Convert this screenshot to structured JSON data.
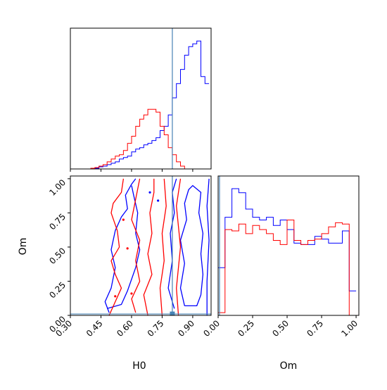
{
  "chart_data": {
    "type": "corner",
    "parameters": [
      "H0",
      "Om"
    ],
    "truth": {
      "H0": 0.8,
      "Om": 0.01
    },
    "truth_color": "#4682b4",
    "colors": {
      "series_a": "#0000ff",
      "series_b": "#ff0000"
    },
    "axes": {
      "H0": {
        "label": "H0",
        "range": [
          0.3,
          0.99
        ],
        "ticks": [
          "0.30",
          "0.45",
          "0.60",
          "0.75",
          "0.90"
        ]
      },
      "Om": {
        "label": "Om",
        "range": [
          0.0,
          1.02
        ],
        "ticks": [
          "0.00",
          "0.25",
          "0.50",
          "0.75",
          "1.00"
        ]
      }
    },
    "hist_H0": {
      "bins": [
        0.3,
        0.32,
        0.34,
        0.36,
        0.38,
        0.4,
        0.42,
        0.44,
        0.46,
        0.48,
        0.5,
        0.52,
        0.54,
        0.56,
        0.58,
        0.6,
        0.62,
        0.64,
        0.66,
        0.68,
        0.7,
        0.72,
        0.74,
        0.76,
        0.78,
        0.8,
        0.82,
        0.84,
        0.86,
        0.88,
        0.9,
        0.92,
        0.94,
        0.96,
        0.98
      ],
      "series_a": [
        0,
        0,
        0,
        0,
        0,
        0,
        0.5,
        1.5,
        2,
        3,
        4,
        5,
        7,
        8,
        9,
        12,
        14,
        15,
        17,
        18,
        20,
        22,
        27,
        30,
        38,
        50,
        60,
        70,
        80,
        86,
        88,
        90,
        65,
        60
      ],
      "series_b": [
        0,
        0,
        0,
        0,
        0,
        0.5,
        1,
        2,
        3,
        5,
        7,
        9,
        10,
        13,
        18,
        23,
        30,
        35,
        38,
        42,
        42,
        40,
        30,
        24,
        15,
        10,
        5,
        2,
        0,
        0,
        0,
        0,
        0,
        0
      ]
    },
    "hist_Om": {
      "bins": [
        0.0,
        0.05,
        0.1,
        0.15,
        0.2,
        0.25,
        0.3,
        0.35,
        0.4,
        0.45,
        0.5,
        0.55,
        0.6,
        0.65,
        0.7,
        0.75,
        0.8,
        0.85,
        0.9,
        0.95,
        1.0
      ],
      "series_a": [
        0.35,
        0.72,
        0.93,
        0.9,
        0.78,
        0.72,
        0.7,
        0.72,
        0.66,
        0.7,
        0.63,
        0.53,
        0.52,
        0.52,
        0.58,
        0.56,
        0.53,
        0.53,
        0.62,
        0.18
      ],
      "series_b": [
        0.02,
        0.63,
        0.62,
        0.67,
        0.6,
        0.66,
        0.63,
        0.6,
        0.55,
        0.52,
        0.7,
        0.55,
        0.52,
        0.55,
        0.56,
        0.6,
        0.65,
        0.68,
        0.67,
        0.0
      ]
    },
    "contours": {
      "series_a": [
        [
          [
            0.49,
            0.02
          ],
          [
            0.47,
            0.1
          ],
          [
            0.5,
            0.2
          ],
          [
            0.52,
            0.35
          ],
          [
            0.5,
            0.48
          ],
          [
            0.52,
            0.62
          ],
          [
            0.55,
            0.72
          ],
          [
            0.58,
            0.78
          ],
          [
            0.57,
            0.88
          ],
          [
            0.6,
            0.96
          ],
          [
            0.62,
            1.0
          ]
        ],
        [
          [
            0.48,
            0.05
          ],
          [
            0.55,
            0.08
          ],
          [
            0.58,
            0.18
          ],
          [
            0.62,
            0.35
          ],
          [
            0.64,
            0.48
          ],
          [
            0.62,
            0.6
          ],
          [
            0.63,
            0.75
          ],
          [
            0.61,
            0.88
          ],
          [
            0.6,
            0.95
          ]
        ],
        [
          [
            0.81,
            0.05
          ],
          [
            0.78,
            0.2
          ],
          [
            0.8,
            0.4
          ],
          [
            0.79,
            0.6
          ],
          [
            0.81,
            0.75
          ],
          [
            0.8,
            0.9
          ],
          [
            0.82,
            1.0
          ]
        ],
        [
          [
            0.86,
            0.07
          ],
          [
            0.84,
            0.2
          ],
          [
            0.86,
            0.38
          ],
          [
            0.84,
            0.55
          ],
          [
            0.87,
            0.7
          ],
          [
            0.86,
            0.82
          ],
          [
            0.88,
            0.92
          ],
          [
            0.9,
            0.95
          ],
          [
            0.94,
            0.9
          ],
          [
            0.93,
            0.75
          ],
          [
            0.95,
            0.6
          ],
          [
            0.94,
            0.45
          ],
          [
            0.95,
            0.3
          ],
          [
            0.94,
            0.15
          ],
          [
            0.92,
            0.07
          ],
          [
            0.86,
            0.07
          ]
        ],
        [
          [
            0.97,
            0.0
          ],
          [
            0.97,
            0.25
          ],
          [
            0.98,
            0.55
          ],
          [
            0.97,
            0.8
          ],
          [
            0.98,
            1.0
          ]
        ]
      ],
      "series_b": [
        [
          [
            0.49,
            0.0
          ],
          [
            0.52,
            0.1
          ],
          [
            0.55,
            0.2
          ],
          [
            0.52,
            0.3
          ],
          [
            0.5,
            0.4
          ],
          [
            0.54,
            0.5
          ],
          [
            0.53,
            0.62
          ],
          [
            0.5,
            0.75
          ],
          [
            0.51,
            0.82
          ],
          [
            0.55,
            0.9
          ],
          [
            0.56,
            1.0
          ]
        ],
        [
          [
            0.62,
            0.02
          ],
          [
            0.6,
            0.12
          ],
          [
            0.64,
            0.25
          ],
          [
            0.62,
            0.4
          ],
          [
            0.64,
            0.55
          ],
          [
            0.6,
            0.7
          ],
          [
            0.62,
            0.85
          ],
          [
            0.64,
            1.0
          ]
        ],
        [
          [
            0.68,
            0.0
          ],
          [
            0.66,
            0.15
          ],
          [
            0.7,
            0.3
          ],
          [
            0.68,
            0.45
          ],
          [
            0.7,
            0.6
          ],
          [
            0.69,
            0.75
          ],
          [
            0.71,
            0.9
          ],
          [
            0.71,
            1.0
          ]
        ],
        [
          [
            0.75,
            0.0
          ],
          [
            0.74,
            0.2
          ],
          [
            0.76,
            0.4
          ],
          [
            0.75,
            0.6
          ],
          [
            0.77,
            0.8
          ],
          [
            0.76,
            1.0
          ]
        ],
        [
          [
            0.83,
            0.0
          ],
          [
            0.82,
            0.2
          ],
          [
            0.84,
            0.5
          ],
          [
            0.82,
            0.8
          ],
          [
            0.84,
            1.0
          ]
        ]
      ]
    },
    "contour_dots": {
      "series_a": [
        [
          0.69,
          0.9
        ],
        [
          0.73,
          0.84
        ]
      ],
      "series_b": [
        [
          0.56,
          0.7
        ],
        [
          0.58,
          0.49
        ],
        [
          0.6,
          0.16
        ],
        [
          0.52,
          0.14
        ]
      ]
    }
  }
}
